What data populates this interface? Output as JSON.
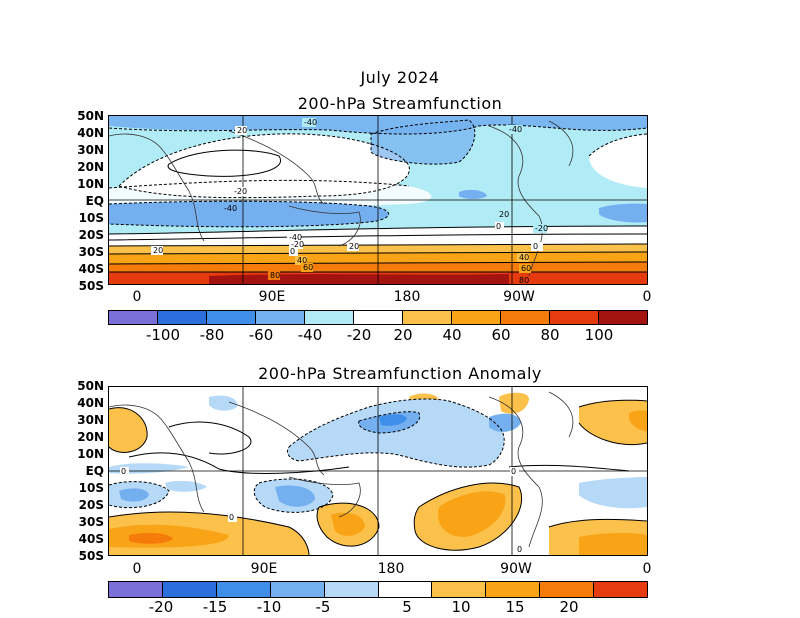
{
  "title_month": "July 2024",
  "top_panel": {
    "title": "200-hPa Streamfunction",
    "lat_labels": [
      "50N",
      "40N",
      "30N",
      "20N",
      "10N",
      "EQ",
      "10S",
      "20S",
      "30S",
      "40S",
      "50S"
    ],
    "lon_labels": [
      "0",
      "90E",
      "180",
      "90W",
      "0"
    ],
    "contour_labels": [
      "-40",
      "20",
      "-20",
      "-40",
      "-40",
      "20",
      "0",
      "-40",
      "-20",
      "0",
      "40",
      "20",
      "60",
      "80",
      "20",
      "40",
      "60",
      "80",
      "0",
      "-20"
    ],
    "colorbar": {
      "labels": [
        "-100",
        "-80",
        "-60",
        "-40",
        "-20",
        "20",
        "40",
        "60",
        "80",
        "100"
      ],
      "colors": [
        "#7b6fd8",
        "#2a6fdc",
        "#3f8fe8",
        "#74b0f0",
        "#b1ecf6",
        "#ffffff",
        "#fbc14a",
        "#f9a316",
        "#f57b0b",
        "#e63a0f",
        "#a31410"
      ]
    }
  },
  "bottom_panel": {
    "title": "200-hPa Streamfunction Anomaly",
    "lat_labels": [
      "50N",
      "40N",
      "30N",
      "20N",
      "10N",
      "EQ",
      "10S",
      "20S",
      "30S",
      "40S",
      "50S"
    ],
    "lon_labels": [
      "0",
      "90E",
      "180",
      "90W",
      "0"
    ],
    "contour_labels": [
      "0",
      "0",
      "0",
      "0"
    ],
    "colorbar": {
      "labels": [
        "-20",
        "-15",
        "-10",
        "-5",
        "5",
        "10",
        "15",
        "20"
      ],
      "colors": [
        "#7b6fd8",
        "#2a6fdc",
        "#3f8fe8",
        "#74b0f0",
        "#b5d9f7",
        "#ffffff",
        "#fbc14a",
        "#f9a316",
        "#f57b0b",
        "#e63a0f"
      ]
    }
  }
}
